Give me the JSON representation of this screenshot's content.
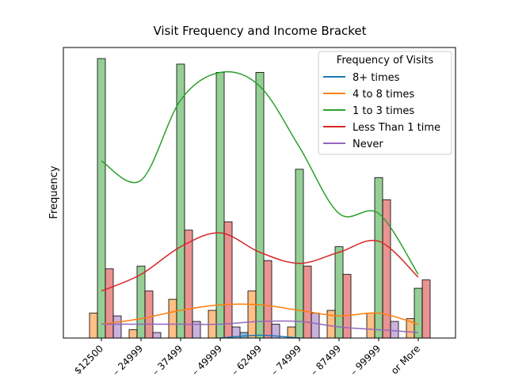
{
  "chart_data": {
    "type": "bar",
    "title": "Visit Frequency and Income Bracket",
    "y_label": "Frequency",
    "categories": [
      "$12500",
      "– 24999",
      "– 37499",
      "– 49999",
      "– 62499",
      "– 74999",
      "– 87499",
      "– 99999",
      "or More"
    ],
    "ylim": [
      0,
      105
    ],
    "legend_title": "Frequency of Visits",
    "legend_position": "upper right",
    "series": [
      {
        "name": "8+ times",
        "color": "#1f77b4",
        "values": [
          0,
          0,
          0,
          0,
          2,
          0,
          0,
          0,
          0
        ],
        "kde": [
          null,
          null,
          null,
          0,
          1,
          0,
          null,
          null,
          null
        ]
      },
      {
        "name": "4 to 8 times",
        "color": "#ff7f0e",
        "values": [
          9,
          3,
          14,
          10,
          17,
          4,
          10,
          9,
          7
        ],
        "kde": [
          5,
          7,
          10,
          12,
          12,
          10,
          8,
          9,
          5
        ]
      },
      {
        "name": "1 to 3 times",
        "color": "#2ca02c",
        "values": [
          101,
          26,
          99,
          96,
          96,
          61,
          33,
          58,
          18
        ],
        "kde": [
          64,
          57,
          86,
          96,
          91,
          69,
          45,
          45,
          23
        ]
      },
      {
        "name": "Less Than 1 time",
        "color": "#d62728",
        "values": [
          25,
          17,
          39,
          42,
          28,
          26,
          23,
          50,
          21
        ],
        "kde": [
          17,
          23,
          33,
          38,
          31,
          27,
          31,
          35,
          22
        ]
      },
      {
        "name": "Never",
        "color": "#9467bd",
        "values": [
          8,
          2,
          6,
          4,
          5,
          9,
          0,
          6,
          0
        ],
        "kde": [
          5,
          5,
          5,
          5,
          6,
          6,
          4,
          3,
          2
        ]
      }
    ]
  }
}
